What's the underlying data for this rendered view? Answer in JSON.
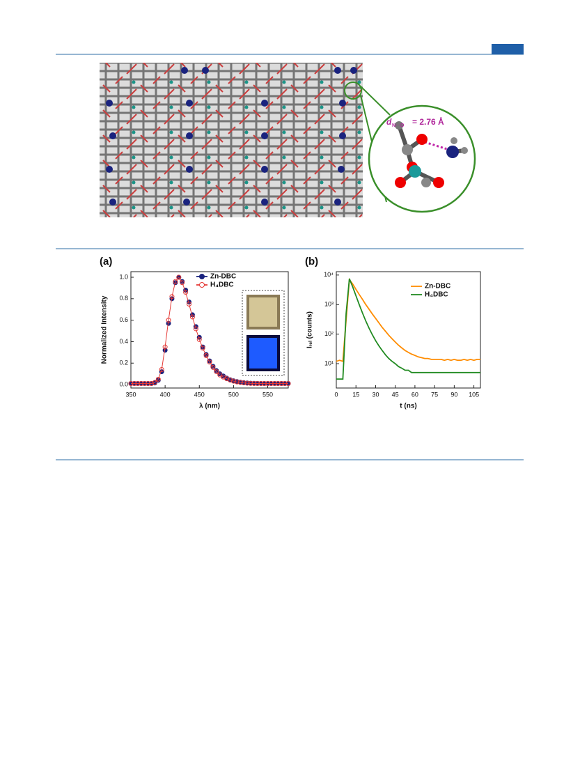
{
  "figure_top": {
    "distance_symbol": "d",
    "distance_sub": "N···O",
    "distance_value": "= 2.76 Å"
  },
  "chart_data": [
    {
      "type": "scatter",
      "panel_label": "(a)",
      "xlabel": "λ (nm)",
      "ylabel": "Normalized Intensity",
      "xlim": [
        350,
        580
      ],
      "ylim": [
        -0.032,
        1.052
      ],
      "xticks": [
        350,
        400,
        450,
        500,
        550
      ],
      "yticks": [
        {
          "value": 0,
          "label": "0.0"
        },
        0.2,
        0.4,
        0.6,
        0.8,
        {
          "value": 1,
          "label": "1.0"
        }
      ],
      "x": [
        350,
        355,
        360,
        365,
        370,
        375,
        380,
        385,
        390,
        395,
        400,
        405,
        410,
        415,
        420,
        425,
        430,
        435,
        440,
        445,
        450,
        455,
        460,
        465,
        470,
        475,
        480,
        485,
        490,
        495,
        500,
        505,
        510,
        515,
        520,
        525,
        530,
        535,
        540,
        545,
        550,
        555,
        560,
        565,
        570,
        575,
        580
      ],
      "series": [
        {
          "name": "Zn-DBC",
          "color": "#1a237e",
          "filled": true,
          "values": [
            0.01,
            0.01,
            0.01,
            0.01,
            0.01,
            0.01,
            0.01,
            0.015,
            0.04,
            0.12,
            0.32,
            0.57,
            0.8,
            0.95,
            1.0,
            0.96,
            0.88,
            0.77,
            0.65,
            0.54,
            0.44,
            0.35,
            0.28,
            0.22,
            0.17,
            0.13,
            0.1,
            0.08,
            0.06,
            0.045,
            0.035,
            0.028,
            0.022,
            0.018,
            0.015,
            0.013,
            0.012,
            0.011,
            0.01,
            0.01,
            0.01,
            0.01,
            0.01,
            0.01,
            0.01,
            0.01,
            0.01
          ]
        },
        {
          "name": "H₄DBC",
          "color": "#e53935",
          "filled": false,
          "values": [
            0.01,
            0.01,
            0.01,
            0.01,
            0.01,
            0.01,
            0.01,
            0.02,
            0.05,
            0.14,
            0.35,
            0.6,
            0.82,
            0.96,
            1.0,
            0.95,
            0.86,
            0.75,
            0.63,
            0.52,
            0.42,
            0.34,
            0.27,
            0.21,
            0.16,
            0.12,
            0.09,
            0.07,
            0.055,
            0.042,
            0.032,
            0.025,
            0.02,
            0.016,
            0.013,
            0.011,
            0.01,
            0.01,
            0.01,
            0.01,
            0.01,
            0.01,
            0.01,
            0.01,
            0.01,
            0.01,
            0.01
          ]
        }
      ]
    },
    {
      "type": "line",
      "panel_label": "(b)",
      "xlabel": "t (ns)",
      "ylabel": "Iᵣₑₗ (counts)",
      "log_y": true,
      "xlim": [
        0,
        110
      ],
      "ylim": [
        1.5,
        13000
      ],
      "xticks": [
        0,
        15,
        30,
        45,
        60,
        75,
        90,
        105
      ],
      "yticks": [
        {
          "value": 10,
          "label": "10¹"
        },
        {
          "value": 100,
          "label": "10²"
        },
        {
          "value": 1000,
          "label": "10³"
        },
        {
          "value": 10000,
          "label": "10⁴"
        }
      ],
      "x": [
        0,
        2.5,
        5,
        7.5,
        10,
        12.5,
        15,
        17.5,
        20,
        22.5,
        25,
        27.5,
        30,
        32.5,
        35,
        37.5,
        40,
        42.5,
        45,
        47.5,
        50,
        52.5,
        55,
        57.5,
        60,
        62.5,
        65,
        67.5,
        70,
        72.5,
        75,
        77.5,
        80,
        82.5,
        85,
        87.5,
        90,
        92.5,
        95,
        97.5,
        100,
        102.5,
        105,
        107.5,
        110
      ],
      "series": [
        {
          "name": "Zn-DBC",
          "color": "#ff8c00",
          "values": [
            12,
            13,
            12,
            300,
            7000,
            5000,
            3300,
            2200,
            1500,
            1000,
            700,
            480,
            340,
            240,
            170,
            125,
            92,
            70,
            54,
            42,
            34,
            28,
            24,
            21,
            19,
            17,
            16,
            15,
            15,
            14,
            14,
            14,
            14,
            13,
            14,
            13,
            14,
            13,
            13,
            14,
            13,
            14,
            13,
            14,
            14
          ]
        },
        {
          "name": "H₄DBC",
          "color": "#228b22",
          "values": [
            3,
            3,
            3,
            500,
            7500,
            4000,
            2000,
            1000,
            520,
            280,
            160,
            95,
            60,
            40,
            28,
            20,
            15,
            12,
            10,
            8,
            7,
            6,
            6,
            5,
            5,
            5,
            5,
            5,
            5,
            5,
            5,
            5,
            5,
            5,
            5,
            5,
            5,
            5,
            5,
            5,
            5,
            5,
            5,
            5,
            5
          ]
        }
      ]
    }
  ]
}
